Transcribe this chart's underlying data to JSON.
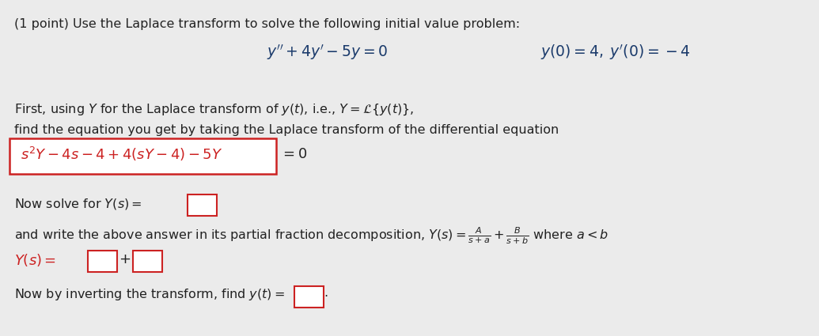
{
  "background_color": "#ebebeb",
  "text_color": "#222222",
  "math_color": "#1a3a6b",
  "red_color": "#cc2222",
  "title": "(1 point) Use the Laplace transform to solve the following initial value problem:",
  "title_fontsize": 11.5,
  "ode_fontsize": 13.5,
  "body_fontsize": 11.5,
  "math_fontsize": 13.0,
  "small_math_fontsize": 11.5
}
